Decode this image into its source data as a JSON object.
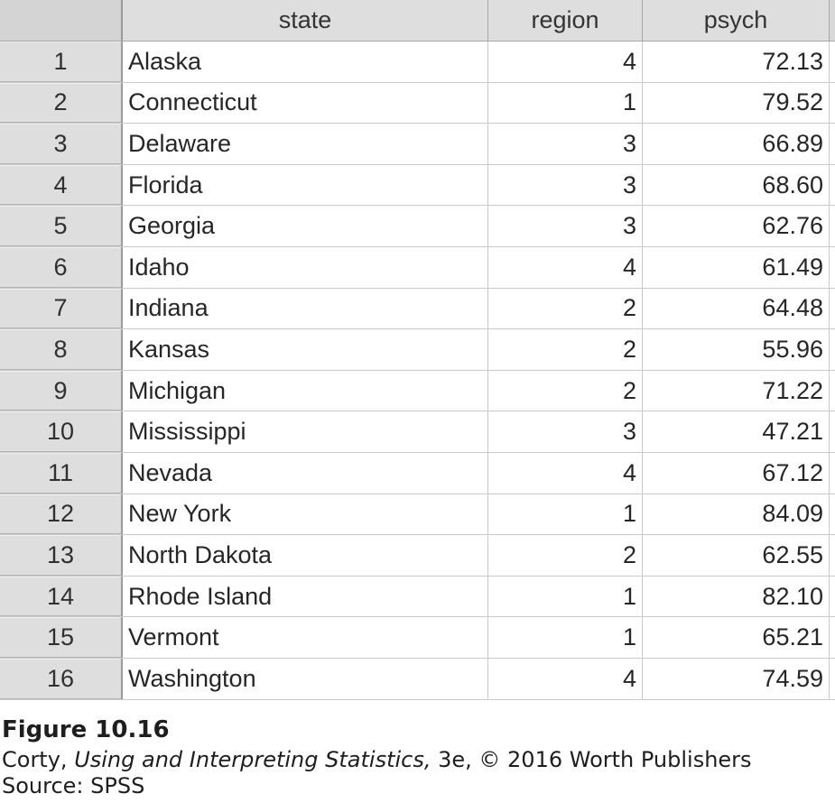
{
  "table": {
    "columns": [
      "state",
      "region",
      "psych"
    ],
    "rows": [
      {
        "num": "1",
        "state": "Alaska",
        "region": "4",
        "psych": "72.13"
      },
      {
        "num": "2",
        "state": "Connecticut",
        "region": "1",
        "psych": "79.52"
      },
      {
        "num": "3",
        "state": "Delaware",
        "region": "3",
        "psych": "66.89"
      },
      {
        "num": "4",
        "state": "Florida",
        "region": "3",
        "psych": "68.60"
      },
      {
        "num": "5",
        "state": "Georgia",
        "region": "3",
        "psych": "62.76"
      },
      {
        "num": "6",
        "state": "Idaho",
        "region": "4",
        "psych": "61.49"
      },
      {
        "num": "7",
        "state": "Indiana",
        "region": "2",
        "psych": "64.48"
      },
      {
        "num": "8",
        "state": "Kansas",
        "region": "2",
        "psych": "55.96"
      },
      {
        "num": "9",
        "state": "Michigan",
        "region": "2",
        "psych": "71.22"
      },
      {
        "num": "10",
        "state": "Mississippi",
        "region": "3",
        "psych": "47.21"
      },
      {
        "num": "11",
        "state": "Nevada",
        "region": "4",
        "psych": "67.12"
      },
      {
        "num": "12",
        "state": "New York",
        "region": "1",
        "psych": "84.09"
      },
      {
        "num": "13",
        "state": "North Dakota",
        "region": "2",
        "psych": "62.55"
      },
      {
        "num": "14",
        "state": "Rhode Island",
        "region": "1",
        "psych": "82.10"
      },
      {
        "num": "15",
        "state": "Vermont",
        "region": "1",
        "psych": "65.21"
      },
      {
        "num": "16",
        "state": "Washington",
        "region": "4",
        "psych": "74.59"
      }
    ]
  },
  "caption": {
    "figure": "Figure 10.16",
    "credit_author": "Corty, ",
    "credit_book": "Using and Interpreting Statistics,",
    "credit_rest": " 3e, © 2016 Worth Publishers",
    "source": "Source: SPSS"
  }
}
